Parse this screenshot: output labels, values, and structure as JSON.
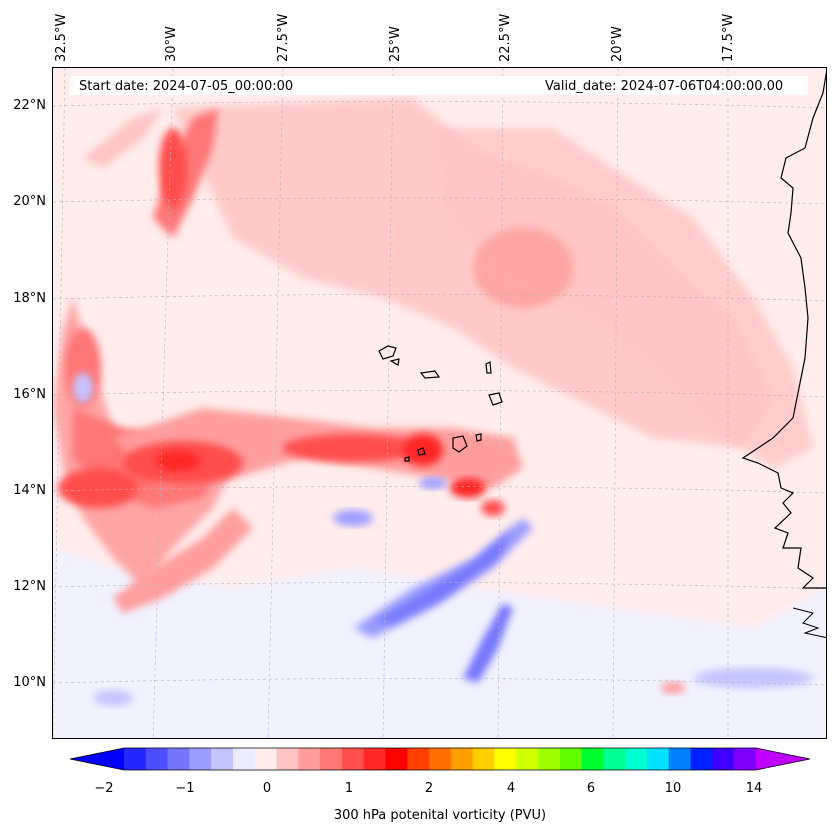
{
  "map": {
    "start_date": "Start date: 2024-07-05_00:00:00",
    "valid_date": "Valid_date: 2024-07-06T04:00:00.00",
    "lon_labels": [
      "32.5°W",
      "30°W",
      "27.5°W",
      "25°W",
      "22.5°W",
      "20°W",
      "17.5°W"
    ],
    "lat_labels": [
      "22°N",
      "20°N",
      "18°N",
      "16°N",
      "14°N",
      "12°N",
      "10°N"
    ]
  },
  "colorbar": {
    "title": "300 hPa potenital vorticity (PVU)",
    "tick_labels": [
      "−2",
      "−1",
      "0",
      "1",
      "2",
      "4",
      "6",
      "10",
      "14"
    ],
    "colors": [
      "#0000ff",
      "#2727ff",
      "#4e4eff",
      "#7676ff",
      "#9d9dff",
      "#c4c4ff",
      "#ececff",
      "#ffecec",
      "#ffc4c4",
      "#ff9d9d",
      "#ff7676",
      "#ff4e4e",
      "#ff2727",
      "#ff0000",
      "#ff4000",
      "#ff7000",
      "#ff9f00",
      "#ffcf00",
      "#ffff00",
      "#cfff00",
      "#9fff00",
      "#60ff00",
      "#00ff30",
      "#00ff90",
      "#00ffd0",
      "#00e0ff",
      "#0080ff",
      "#0020ff",
      "#4000ff",
      "#8000ff",
      "#c000ff"
    ]
  }
}
